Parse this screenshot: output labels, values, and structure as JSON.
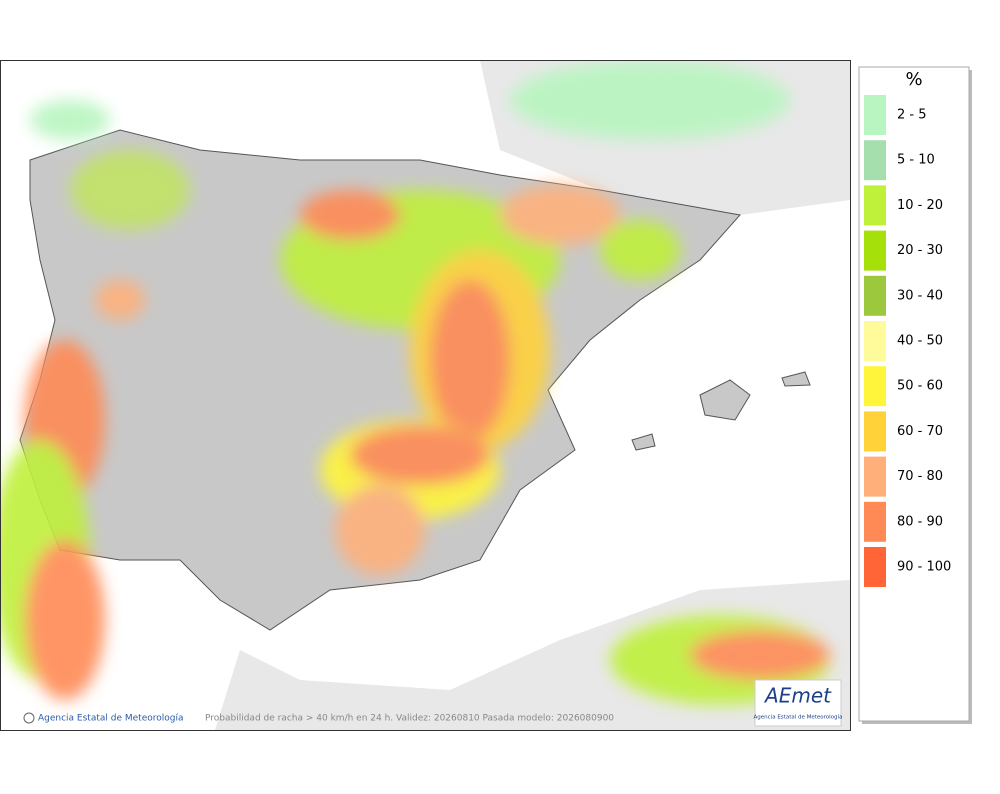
{
  "footer": {
    "credit": "Agencia Estatal de Meteorología",
    "caption": "Probabilidad de racha > 40 km/h en 24 h. Validez: 20260810 Pasada modelo: 2026080900"
  },
  "logo": {
    "name": "AEmet",
    "subtitle": "Agencia Estatal de Meteorología"
  },
  "legend": {
    "title": "%",
    "items": [
      {
        "label": "2 - 5",
        "color": "#b8f5c0"
      },
      {
        "label": "5 - 10",
        "color": "#a6dfae"
      },
      {
        "label": "10 - 20",
        "color": "#bff03a"
      },
      {
        "label": "20 - 30",
        "color": "#a6e00a"
      },
      {
        "label": "30 - 40",
        "color": "#9cc83e"
      },
      {
        "label": "40 - 50",
        "color": "#fffa9a"
      },
      {
        "label": "50 - 60",
        "color": "#fff53a"
      },
      {
        "label": "60 - 70",
        "color": "#ffd23a"
      },
      {
        "label": "70 - 80",
        "color": "#ffb07a"
      },
      {
        "label": "80 - 90",
        "color": "#ff8a55"
      },
      {
        "label": "90 - 100",
        "color": "#ff6536"
      }
    ]
  }
}
